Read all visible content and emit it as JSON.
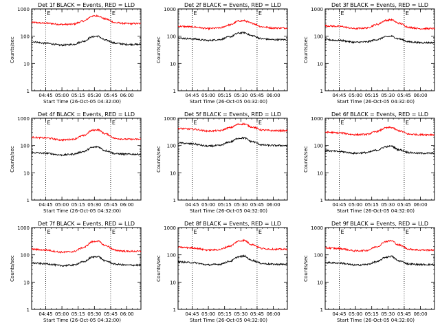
{
  "colors": {
    "events": "#000000",
    "lld": "#ff0000",
    "axes": "#000000",
    "background": "#ffffff"
  },
  "chart_data": [
    {
      "type": "line",
      "title": "Det 1f BLACK = Events, RED = LLD",
      "xlabel": "Start Time (26-Oct-05 04:32:00)",
      "ylabel": "Counts/sec",
      "y_scale": "log",
      "ylim": [
        1,
        1000
      ],
      "xlim": [
        "04:32",
        "06:13"
      ],
      "xticks": [
        "04:45",
        "05:00",
        "05:15",
        "05:30",
        "05:45",
        "06:00"
      ],
      "yticks": [
        "1",
        "10",
        "100",
        "1000"
      ],
      "markers": [
        "04:45",
        "05:45"
      ],
      "marker_label": "E",
      "series": [
        {
          "name": "LLD",
          "color": "#ff0000",
          "x": [
            "04:32",
            "04:45",
            "05:00",
            "05:10",
            "05:20",
            "05:28",
            "05:33",
            "05:40",
            "05:50",
            "06:00",
            "06:13"
          ],
          "y": [
            320,
            300,
            270,
            275,
            360,
            540,
            560,
            430,
            310,
            290,
            290
          ]
        },
        {
          "name": "Events",
          "color": "#000000",
          "x": [
            "04:32",
            "04:45",
            "05:00",
            "05:10",
            "05:20",
            "05:28",
            "05:33",
            "05:40",
            "05:50",
            "06:00",
            "06:13"
          ],
          "y": [
            63,
            55,
            47,
            50,
            65,
            95,
            100,
            72,
            55,
            50,
            50
          ]
        }
      ]
    },
    {
      "type": "line",
      "title": "Det 2f BLACK = Events, RED = LLD",
      "xlabel": "Start Time (26-Oct-05 04:32:00)",
      "ylabel": "Counts/sec",
      "y_scale": "log",
      "ylim": [
        1,
        1000
      ],
      "xlim": [
        "04:32",
        "06:13"
      ],
      "xticks": [
        "04:45",
        "05:00",
        "05:15",
        "05:30",
        "05:45",
        "06:00"
      ],
      "yticks": [
        "1",
        "10",
        "100",
        "1000"
      ],
      "markers": [
        "04:45",
        "05:45"
      ],
      "marker_label": "E",
      "series": [
        {
          "name": "LLD",
          "color": "#ff0000",
          "x": [
            "04:32",
            "04:45",
            "05:00",
            "05:10",
            "05:20",
            "05:28",
            "05:33",
            "05:40",
            "05:50",
            "06:00",
            "06:13"
          ],
          "y": [
            230,
            220,
            190,
            200,
            260,
            360,
            370,
            300,
            220,
            200,
            200
          ]
        },
        {
          "name": "Events",
          "color": "#000000",
          "x": [
            "04:32",
            "04:45",
            "05:00",
            "05:10",
            "05:20",
            "05:28",
            "05:33",
            "05:40",
            "05:50",
            "06:00",
            "06:13"
          ],
          "y": [
            85,
            80,
            70,
            75,
            95,
            130,
            135,
            105,
            80,
            75,
            75
          ]
        }
      ]
    },
    {
      "type": "line",
      "title": "Det 3f BLACK = Events, RED = LLD",
      "xlabel": "Start Time (26-Oct-05 04:32:00)",
      "ylabel": "Counts/sec",
      "y_scale": "log",
      "ylim": [
        1,
        1000
      ],
      "xlim": [
        "04:32",
        "06:13"
      ],
      "xticks": [
        "04:45",
        "05:00",
        "05:15",
        "05:30",
        "05:45",
        "06:00"
      ],
      "yticks": [
        "1",
        "10",
        "100",
        "1000"
      ],
      "markers": [
        "04:45",
        "05:45"
      ],
      "marker_label": "E",
      "series": [
        {
          "name": "LLD",
          "color": "#ff0000",
          "x": [
            "04:32",
            "04:45",
            "05:00",
            "05:10",
            "05:20",
            "05:28",
            "05:33",
            "05:40",
            "05:50",
            "06:00",
            "06:13"
          ],
          "y": [
            240,
            230,
            190,
            200,
            270,
            380,
            400,
            300,
            210,
            190,
            190
          ]
        },
        {
          "name": "Events",
          "color": "#000000",
          "x": [
            "04:32",
            "04:45",
            "05:00",
            "05:10",
            "05:20",
            "05:28",
            "05:33",
            "05:40",
            "05:50",
            "06:00",
            "06:13"
          ],
          "y": [
            75,
            70,
            60,
            62,
            75,
            95,
            100,
            80,
            62,
            58,
            58
          ]
        }
      ]
    },
    {
      "type": "line",
      "title": "Det 4f BLACK = Events, RED = LLD",
      "xlabel": "Start Time (26-Oct-05 04:32:00)",
      "ylabel": "Counts/sec",
      "y_scale": "log",
      "ylim": [
        1,
        1000
      ],
      "xlim": [
        "04:32",
        "06:13"
      ],
      "xticks": [
        "04:45",
        "05:00",
        "05:15",
        "05:30",
        "05:45",
        "06:00"
      ],
      "yticks": [
        "1",
        "10",
        "100",
        "1000"
      ],
      "markers": [
        "04:45",
        "05:45"
      ],
      "marker_label": "E",
      "series": [
        {
          "name": "LLD",
          "color": "#ff0000",
          "x": [
            "04:32",
            "04:45",
            "05:00",
            "05:10",
            "05:20",
            "05:28",
            "05:33",
            "05:40",
            "05:50",
            "06:00",
            "06:13"
          ],
          "y": [
            200,
            190,
            160,
            170,
            230,
            360,
            380,
            270,
            180,
            170,
            170
          ]
        },
        {
          "name": "Events",
          "color": "#000000",
          "x": [
            "04:32",
            "04:45",
            "05:00",
            "05:10",
            "05:20",
            "05:28",
            "05:33",
            "05:40",
            "05:50",
            "06:00",
            "06:13"
          ],
          "y": [
            55,
            52,
            45,
            48,
            60,
            85,
            90,
            65,
            50,
            48,
            48
          ]
        }
      ]
    },
    {
      "type": "line",
      "title": "Det 5f BLACK = Events, RED = LLD",
      "xlabel": "Start Time (26-Oct-05 04:32:00)",
      "ylabel": "Counts/sec",
      "y_scale": "log",
      "ylim": [
        1,
        1000
      ],
      "xlim": [
        "04:32",
        "06:13"
      ],
      "xticks": [
        "04:45",
        "05:00",
        "05:15",
        "05:30",
        "05:45",
        "06:00"
      ],
      "yticks": [
        "1",
        "10",
        "100",
        "1000"
      ],
      "markers": [
        "04:45",
        "05:45"
      ],
      "marker_label": "E",
      "series": [
        {
          "name": "LLD",
          "color": "#ff0000",
          "x": [
            "04:32",
            "04:45",
            "05:00",
            "05:10",
            "05:20",
            "05:28",
            "05:33",
            "05:40",
            "05:50",
            "06:00",
            "06:13"
          ],
          "y": [
            420,
            400,
            340,
            350,
            450,
            600,
            620,
            480,
            370,
            350,
            350
          ]
        },
        {
          "name": "Events",
          "color": "#000000",
          "x": [
            "04:32",
            "04:45",
            "05:00",
            "05:10",
            "05:20",
            "05:28",
            "05:33",
            "05:40",
            "05:50",
            "06:00",
            "06:13"
          ],
          "y": [
            125,
            115,
            95,
            100,
            135,
            185,
            190,
            140,
            105,
            100,
            100
          ]
        }
      ]
    },
    {
      "type": "line",
      "title": "Det 6f BLACK = Events, RED = LLD",
      "xlabel": "Start Time (26-Oct-05 04:32:00)",
      "ylabel": "Counts/sec",
      "y_scale": "log",
      "ylim": [
        1,
        1000
      ],
      "xlim": [
        "04:32",
        "06:13"
      ],
      "xticks": [
        "04:45",
        "05:00",
        "05:15",
        "05:30",
        "05:45",
        "06:00"
      ],
      "yticks": [
        "1",
        "10",
        "100",
        "1000"
      ],
      "markers": [
        "04:45",
        "05:45"
      ],
      "marker_label": "E",
      "series": [
        {
          "name": "LLD",
          "color": "#ff0000",
          "x": [
            "04:32",
            "04:45",
            "05:00",
            "05:10",
            "05:20",
            "05:28",
            "05:33",
            "05:40",
            "05:50",
            "06:00",
            "06:13"
          ],
          "y": [
            310,
            290,
            250,
            255,
            330,
            440,
            460,
            350,
            260,
            250,
            250
          ]
        },
        {
          "name": "Events",
          "color": "#000000",
          "x": [
            "04:32",
            "04:45",
            "05:00",
            "05:10",
            "05:20",
            "05:28",
            "05:33",
            "05:40",
            "05:50",
            "06:00",
            "06:13"
          ],
          "y": [
            65,
            60,
            52,
            55,
            68,
            90,
            95,
            70,
            55,
            52,
            52
          ]
        }
      ]
    },
    {
      "type": "line",
      "title": "Det 7f BLACK = Events, RED = LLD",
      "xlabel": "Start Time (26-Oct-05 04:32:00)",
      "ylabel": "Counts/sec",
      "y_scale": "log",
      "ylim": [
        1,
        1000
      ],
      "xlim": [
        "04:32",
        "06:13"
      ],
      "xticks": [
        "04:45",
        "05:00",
        "05:15",
        "05:30",
        "05:45",
        "06:00"
      ],
      "yticks": [
        "1",
        "10",
        "100",
        "1000"
      ],
      "markers": [
        "04:45",
        "05:45"
      ],
      "marker_label": "E",
      "series": [
        {
          "name": "LLD",
          "color": "#ff0000",
          "x": [
            "04:32",
            "04:45",
            "05:00",
            "05:10",
            "05:20",
            "05:28",
            "05:33",
            "05:40",
            "05:50",
            "06:00",
            "06:13"
          ],
          "y": [
            160,
            150,
            125,
            130,
            185,
            300,
            320,
            220,
            145,
            135,
            135
          ]
        },
        {
          "name": "Events",
          "color": "#000000",
          "x": [
            "04:32",
            "04:45",
            "05:00",
            "05:10",
            "05:20",
            "05:28",
            "05:33",
            "05:40",
            "05:50",
            "06:00",
            "06:13"
          ],
          "y": [
            50,
            47,
            40,
            42,
            55,
            82,
            88,
            60,
            45,
            42,
            42
          ]
        }
      ]
    },
    {
      "type": "line",
      "title": "Det 8f BLACK = Events, RED = LLD",
      "xlabel": "Start Time (26-Oct-05 04:32:00)",
      "ylabel": "Counts/sec",
      "y_scale": "log",
      "ylim": [
        1,
        1000
      ],
      "xlim": [
        "04:32",
        "06:13"
      ],
      "xticks": [
        "04:45",
        "05:00",
        "05:15",
        "05:30",
        "05:45",
        "06:00"
      ],
      "yticks": [
        "1",
        "10",
        "100",
        "1000"
      ],
      "markers": [
        "04:45",
        "05:45"
      ],
      "marker_label": "E",
      "series": [
        {
          "name": "LLD",
          "color": "#ff0000",
          "x": [
            "04:32",
            "04:45",
            "05:00",
            "05:10",
            "05:20",
            "05:28",
            "05:33",
            "05:40",
            "05:50",
            "06:00",
            "06:13"
          ],
          "y": [
            190,
            180,
            150,
            155,
            210,
            320,
            340,
            240,
            170,
            160,
            160
          ]
        },
        {
          "name": "Events",
          "color": "#000000",
          "x": [
            "04:32",
            "04:45",
            "05:00",
            "05:10",
            "05:20",
            "05:28",
            "05:33",
            "05:40",
            "05:50",
            "06:00",
            "06:13"
          ],
          "y": [
            55,
            52,
            43,
            45,
            58,
            85,
            90,
            63,
            48,
            45,
            45
          ]
        }
      ]
    },
    {
      "type": "line",
      "title": "Det 9f BLACK = Events, RED = LLD",
      "xlabel": "Start Time (26-Oct-05 04:32:00)",
      "ylabel": "Counts/sec",
      "y_scale": "log",
      "ylim": [
        1,
        1000
      ],
      "xlim": [
        "04:32",
        "06:13"
      ],
      "xticks": [
        "04:45",
        "05:00",
        "05:15",
        "05:30",
        "05:45",
        "06:00"
      ],
      "yticks": [
        "1",
        "10",
        "100",
        "1000"
      ],
      "markers": [
        "04:45",
        "05:45"
      ],
      "marker_label": "E",
      "series": [
        {
          "name": "LLD",
          "color": "#ff0000",
          "x": [
            "04:32",
            "04:45",
            "05:00",
            "05:10",
            "05:20",
            "05:28",
            "05:33",
            "05:40",
            "05:50",
            "06:00",
            "06:13"
          ],
          "y": [
            180,
            170,
            140,
            145,
            200,
            310,
            330,
            230,
            160,
            150,
            150
          ]
        },
        {
          "name": "Events",
          "color": "#000000",
          "x": [
            "04:32",
            "04:45",
            "05:00",
            "05:10",
            "05:20",
            "05:28",
            "05:33",
            "05:40",
            "05:50",
            "06:00",
            "06:13"
          ],
          "y": [
            52,
            50,
            42,
            44,
            56,
            82,
            88,
            60,
            46,
            44,
            44
          ]
        }
      ]
    }
  ]
}
